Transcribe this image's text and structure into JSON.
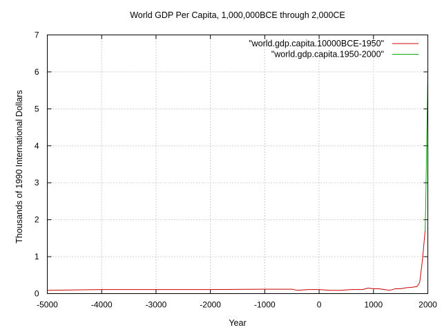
{
  "chart_data": {
    "type": "line",
    "title": "World GDP Per Capita, 1,000,000BCE through 2,000CE",
    "xlabel": "Year",
    "ylabel": "Thousands of 1990 International Dollars",
    "xlim": [
      -5000,
      2000
    ],
    "ylim": [
      0,
      7
    ],
    "xticks": [
      -5000,
      -4000,
      -3000,
      -2000,
      -1000,
      0,
      1000,
      2000
    ],
    "xtick_labels": [
      "-5000",
      "-4000",
      "-3000",
      "-2000",
      "-1000",
      "0",
      "1000",
      "2000"
    ],
    "yticks": [
      0,
      1,
      2,
      3,
      4,
      5,
      6,
      7
    ],
    "ytick_labels": [
      "0",
      "1",
      "2",
      "3",
      "4",
      "5",
      "6",
      "7"
    ],
    "grid": true,
    "legend_position": "top-right",
    "series": [
      {
        "name": "\"world.gdp.capita.10000BCE-1950\"",
        "color": "#cc0000",
        "x": [
          -5000,
          -4000,
          -3000,
          -2000,
          -1000,
          -500,
          -400,
          -200,
          0,
          200,
          400,
          600,
          800,
          900,
          1000,
          1100,
          1200,
          1300,
          1400,
          1500,
          1600,
          1700,
          1800,
          1850,
          1900,
          1950
        ],
        "y": [
          0.09,
          0.11,
          0.11,
          0.11,
          0.12,
          0.12,
          0.09,
          0.11,
          0.11,
          0.09,
          0.09,
          0.11,
          0.11,
          0.15,
          0.13,
          0.13,
          0.11,
          0.09,
          0.13,
          0.13,
          0.16,
          0.17,
          0.19,
          0.3,
          0.9,
          1.7
        ]
      },
      {
        "name": "\"world.gdp.capita.1950-2000\"",
        "color": "#00aa00",
        "x": [
          1950,
          1960,
          1970,
          1980,
          1990,
          2000
        ],
        "y": [
          1.7,
          2.3,
          3.2,
          4.2,
          5.0,
          6.0
        ]
      }
    ]
  }
}
